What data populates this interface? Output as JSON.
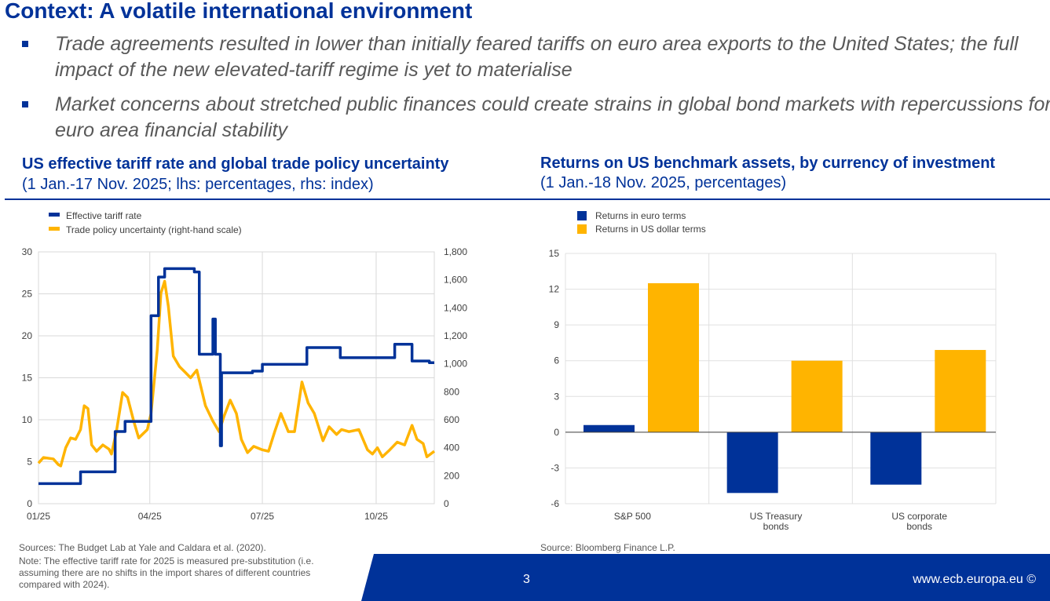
{
  "title": "Context: A volatile international environment",
  "bullets": [
    "Trade agreements resulted in lower than initially feared tariffs on euro area exports to the United States; the full impact of the new elevated-tariff regime is yet to materialise",
    "Market concerns about stretched public finances could create strains in global bond markets with repercussions for euro area financial stability"
  ],
  "left_panel": {
    "title": "US effective tariff rate and global trade policy uncertainty",
    "subtitle": "(1 Jan.-17 Nov. 2025; lhs: percentages, rhs: index)",
    "sources": "Sources: The Budget Lab at Yale and Caldara et al. (2020).",
    "note": "Note: The effective tariff rate for 2025 is measured pre-substitution (i.e. assuming there are no shifts in the import shares of different countries compared with 2024)."
  },
  "right_panel": {
    "title": "Returns on US benchmark assets, by currency of investment",
    "subtitle": "(1 Jan.-18 Nov. 2025, percentages)",
    "source": "Source: Bloomberg Finance L.P."
  },
  "footer": {
    "page_number": "3",
    "website": "www.ecb.europa.eu ©"
  },
  "colors": {
    "brand_blue": "#003299",
    "yellow": "#ffb400",
    "text_gray": "#595959"
  },
  "chart_data": [
    {
      "type": "line",
      "x_range": [
        "2025-01-01",
        "2025-11-17"
      ],
      "x_ticks": [
        [
          "2025-01-01",
          "01/25"
        ],
        [
          "2025-04-01",
          "04/25"
        ],
        [
          "2025-07-01",
          "07/25"
        ],
        [
          "2025-10-01",
          "10/25"
        ]
      ],
      "y_left": {
        "range": [
          0,
          30
        ],
        "ticks": [
          "0",
          "5",
          "10",
          "15",
          "20",
          "25",
          "30"
        ]
      },
      "y_right": {
        "range": [
          0,
          1800
        ],
        "ticks": [
          "0",
          "200",
          "400",
          "600",
          "800",
          "1,000",
          "1,200",
          "1,400",
          "1,600",
          "1,800"
        ]
      },
      "grid": true,
      "legend": "top-left",
      "series": [
        {
          "name": "Effective tariff rate",
          "axis": "left",
          "color": "#003299",
          "step": true,
          "points": [
            [
              "2025-01-01",
              2.4
            ],
            [
              "2025-02-04",
              3.8
            ],
            [
              "2025-03-04",
              8.6
            ],
            [
              "2025-03-12",
              9.8
            ],
            [
              "2025-04-02",
              22.4
            ],
            [
              "2025-04-08",
              27
            ],
            [
              "2025-04-13",
              28
            ],
            [
              "2025-05-07",
              27.6
            ],
            [
              "2025-05-11",
              17.8
            ],
            [
              "2025-05-22",
              22
            ],
            [
              "2025-05-24",
              17.8
            ],
            [
              "2025-05-28",
              6.9
            ],
            [
              "2025-05-29",
              15.6
            ],
            [
              "2025-06-23",
              15.8
            ],
            [
              "2025-07-01",
              16.6
            ],
            [
              "2025-08-06",
              18.6
            ],
            [
              "2025-09-02",
              17.4
            ],
            [
              "2025-10-16",
              19
            ],
            [
              "2025-10-30",
              17
            ],
            [
              "2025-11-13",
              16.8
            ],
            [
              "2025-11-17",
              16.8
            ]
          ]
        },
        {
          "name": "Trade policy uncertainty (right-hand scale)",
          "axis": "right",
          "color": "#ffb400",
          "step": false,
          "points": [
            [
              "2025-01-01",
              290
            ],
            [
              "2025-01-05",
              330
            ],
            [
              "2025-01-13",
              320
            ],
            [
              "2025-01-17",
              280
            ],
            [
              "2025-01-19",
              270
            ],
            [
              "2025-01-23",
              400
            ],
            [
              "2025-01-27",
              470
            ],
            [
              "2025-01-31",
              460
            ],
            [
              "2025-02-04",
              530
            ],
            [
              "2025-02-07",
              700
            ],
            [
              "2025-02-10",
              680
            ],
            [
              "2025-02-13",
              420
            ],
            [
              "2025-02-17",
              375
            ],
            [
              "2025-02-22",
              420
            ],
            [
              "2025-02-27",
              390
            ],
            [
              "2025-03-01",
              355
            ],
            [
              "2025-03-05",
              515
            ],
            [
              "2025-03-10",
              795
            ],
            [
              "2025-03-14",
              760
            ],
            [
              "2025-03-19",
              590
            ],
            [
              "2025-03-23",
              470
            ],
            [
              "2025-03-30",
              530
            ],
            [
              "2025-04-02",
              645
            ],
            [
              "2025-04-07",
              1095
            ],
            [
              "2025-04-10",
              1505
            ],
            [
              "2025-04-13",
              1590
            ],
            [
              "2025-04-16",
              1410
            ],
            [
              "2025-04-20",
              1055
            ],
            [
              "2025-04-25",
              980
            ],
            [
              "2025-04-29",
              945
            ],
            [
              "2025-05-04",
              900
            ],
            [
              "2025-05-09",
              955
            ],
            [
              "2025-05-16",
              700
            ],
            [
              "2025-05-22",
              590
            ],
            [
              "2025-05-27",
              515
            ],
            [
              "2025-05-31",
              625
            ],
            [
              "2025-06-05",
              740
            ],
            [
              "2025-06-10",
              645
            ],
            [
              "2025-06-14",
              460
            ],
            [
              "2025-06-19",
              365
            ],
            [
              "2025-06-24",
              410
            ],
            [
              "2025-07-01",
              385
            ],
            [
              "2025-07-06",
              375
            ],
            [
              "2025-07-11",
              515
            ],
            [
              "2025-07-16",
              645
            ],
            [
              "2025-07-22",
              515
            ],
            [
              "2025-07-27",
              515
            ],
            [
              "2025-08-02",
              870
            ],
            [
              "2025-08-07",
              720
            ],
            [
              "2025-08-12",
              645
            ],
            [
              "2025-08-19",
              450
            ],
            [
              "2025-08-24",
              550
            ],
            [
              "2025-08-30",
              495
            ],
            [
              "2025-09-03",
              530
            ],
            [
              "2025-09-09",
              515
            ],
            [
              "2025-09-17",
              530
            ],
            [
              "2025-09-24",
              385
            ],
            [
              "2025-09-28",
              355
            ],
            [
              "2025-10-02",
              400
            ],
            [
              "2025-10-06",
              335
            ],
            [
              "2025-10-12",
              385
            ],
            [
              "2025-10-18",
              440
            ],
            [
              "2025-10-24",
              420
            ],
            [
              "2025-10-30",
              560
            ],
            [
              "2025-11-03",
              460
            ],
            [
              "2025-11-08",
              430
            ],
            [
              "2025-11-11",
              335
            ],
            [
              "2025-11-17",
              375
            ]
          ]
        }
      ]
    },
    {
      "type": "bar",
      "categories": [
        [
          "S&P 500"
        ],
        [
          "US Treasury",
          "bonds"
        ],
        [
          "US corporate",
          "bonds"
        ]
      ],
      "ylim": [
        -6,
        15
      ],
      "y_ticks": [
        "-6",
        "-3",
        "0",
        "3",
        "6",
        "9",
        "12",
        "15"
      ],
      "grid": true,
      "legend": "top-left",
      "series": [
        {
          "name": "Returns in euro terms",
          "color": "#003299",
          "values": [
            0.6,
            -5.1,
            -4.4
          ]
        },
        {
          "name": "Returns in US dollar terms",
          "color": "#ffb400",
          "values": [
            12.5,
            6.0,
            6.9
          ]
        }
      ]
    }
  ]
}
